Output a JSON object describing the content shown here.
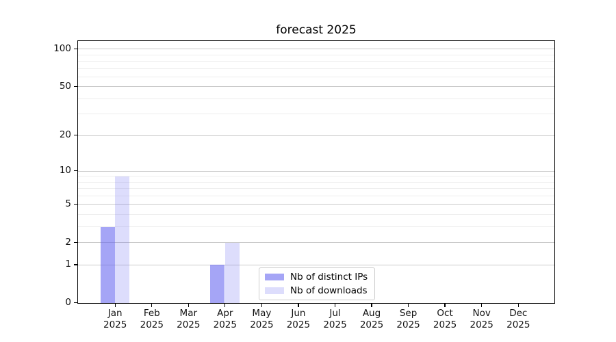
{
  "chart_data": {
    "type": "bar",
    "title": "forecast 2025",
    "categories": [
      "Jan",
      "Feb",
      "Mar",
      "Apr",
      "May",
      "Jun",
      "Jul",
      "Aug",
      "Sep",
      "Oct",
      "Nov",
      "Dec"
    ],
    "category_year": "2025",
    "series": [
      {
        "name": "Nb of distinct IPs",
        "color": "#6464f0",
        "alpha": 0.58,
        "values": [
          3,
          0,
          0,
          1,
          0,
          0,
          0,
          0,
          0,
          0,
          0,
          0
        ]
      },
      {
        "name": "Nb of downloads",
        "color": "#6464f0",
        "alpha": 0.22,
        "values": [
          9,
          0,
          0,
          2,
          0,
          0,
          0,
          0,
          0,
          0,
          0,
          0
        ]
      }
    ],
    "yscale": "log1p",
    "ylim": [
      0,
      115
    ],
    "yticks": [
      0,
      1,
      2,
      5,
      10,
      20,
      50,
      100
    ],
    "minor_gridlines": [
      3,
      4,
      6,
      7,
      8,
      9,
      30,
      40,
      60,
      70,
      80,
      90
    ],
    "grid": "horizontal-both",
    "legend_position": "lower-center",
    "colors": {
      "major_grid": "#c9c9c9",
      "minor_grid": "#ededed",
      "spine": "#000000",
      "background": "#ffffff",
      "tick_text": "#111111"
    }
  }
}
